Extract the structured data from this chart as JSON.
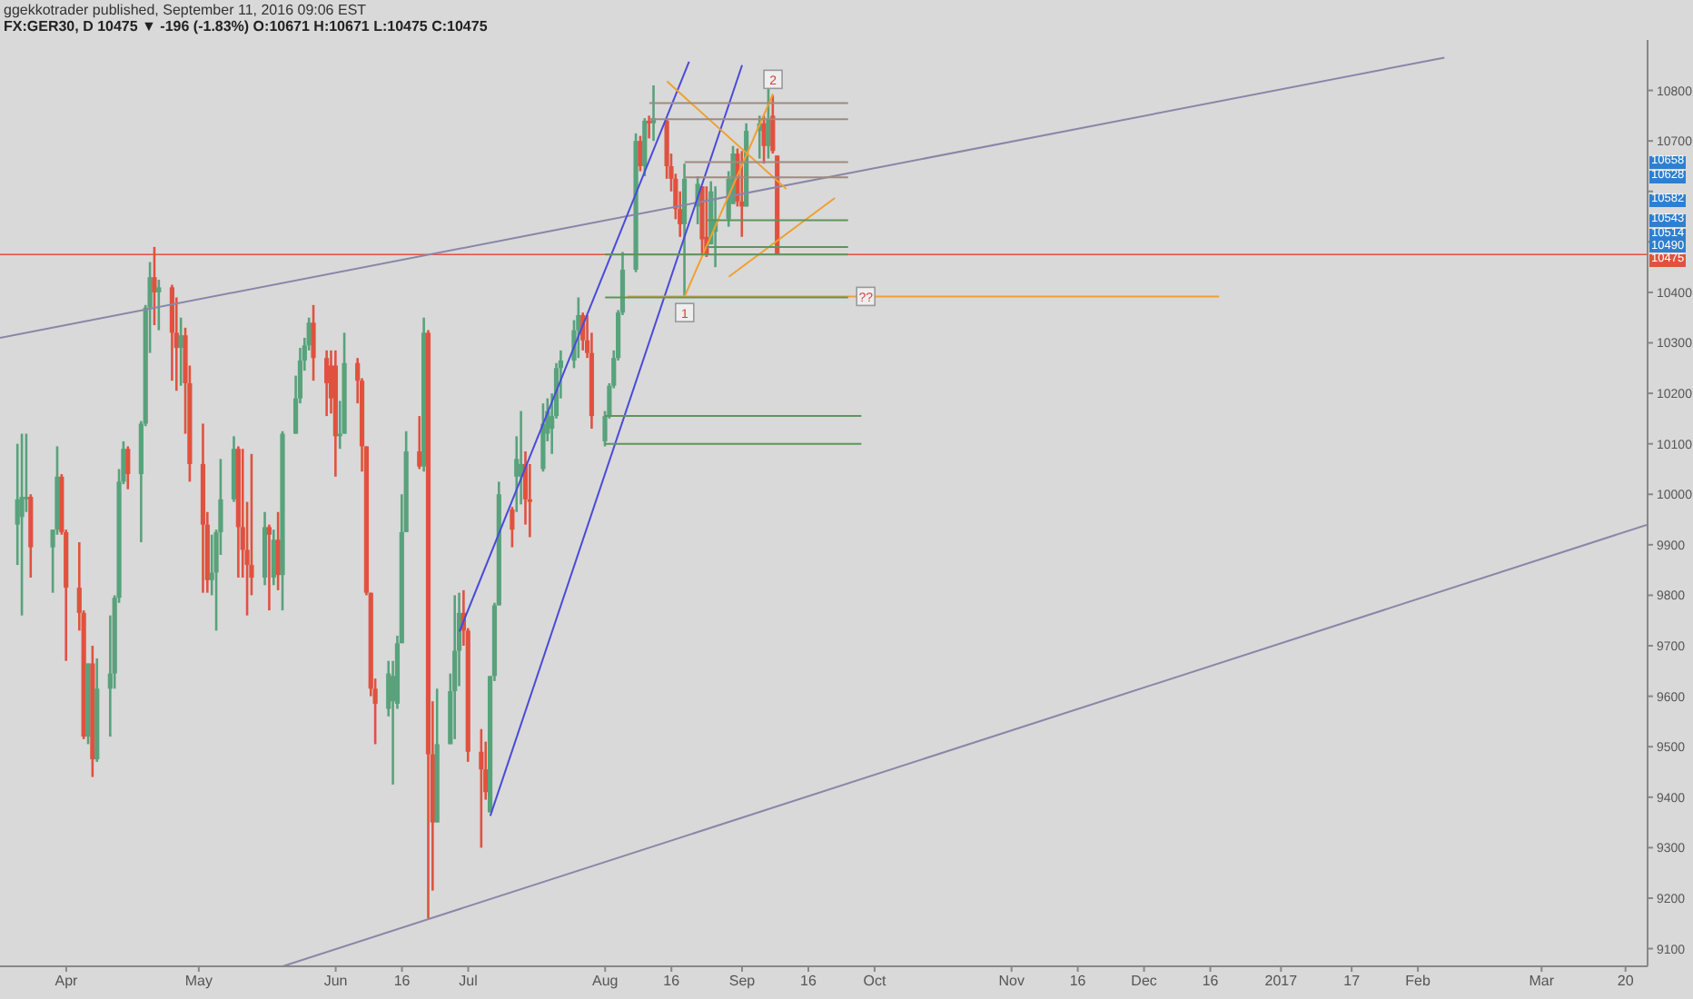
{
  "chart_data": {
    "type": "candlestick",
    "title": "ggekkotrader published, September 11, 2016 09:06 EST",
    "subtitle": "FX:GER30, D 10475 ▼ -196 (-1.83%) O:10671 H:10671 L:10475 C:10475",
    "colors": [
      "#58a27c",
      "#58a27c",
      "#58a27c",
      "#e0523f",
      "#58a27c",
      "#58a27c",
      "#e0523f",
      "#e0523f",
      "#e0523f",
      "#e0523f",
      "#58a27c",
      "#e0523f",
      "#58a27c",
      "#58a27c",
      "#58a27c",
      "#58a27c",
      "#58a27c",
      "#e0523f",
      "#58a27c",
      "#58a27c",
      "#58a27c",
      "#e0523f",
      "#58a27c",
      "#e0523f",
      "#e0523f",
      "#58a27c",
      "#e0523f",
      "#e0523f",
      "#e0523f",
      "#e0523f",
      "#58a27c",
      "#58a27c",
      "#58a27c",
      "#58a27c",
      "#e0523f",
      "#e0523f",
      "#e0523f",
      "#e0523f",
      "#58a27c",
      "#e0523f",
      "#58a27c",
      "#e0523f",
      "#58a27c",
      "#58a27c",
      "#58a27c",
      "#58a27c",
      "#58a27c",
      "#e0523f",
      "#e0523f",
      "#e0523f",
      "#e0523f",
      "#58a27c",
      "#58a27c",
      "#e0523f",
      "#e0523f",
      "#e0523f",
      "#e0523f",
      "#e0523f",
      "#58a27c",
      "#58a27c",
      "#58a27c",
      "#58a27c",
      "#58a27c",
      "#e0523f",
      "#58a27c",
      "#e0523f",
      "#e0523f",
      "#58a27c",
      "#58a27c",
      "#58a27c",
      "#58a27c",
      "#e0523f",
      "#e0523f",
      "#e0523f",
      "#e0523f",
      "#58a27c",
      "#58a27c",
      "#58a27c",
      "#e0523f",
      "#58a27c",
      "#58a27c",
      "#e0523f",
      "#e0523f",
      "#58a27c",
      "#58a27c",
      "#58a27c",
      "#58a27c",
      "#58a27c",
      "#58a27c",
      "#58a27c",
      "#e0523f",
      "#e0523f",
      "#e0523f",
      "#58a27c",
      "#58a27c",
      "#58a27c",
      "#58a27c",
      "#58a27c",
      "#58a27c",
      "#e0523f",
      "#58a27c",
      "#e0523f",
      "#58a27c",
      "#e0523f",
      "#e0523f",
      "#e0523f",
      "#e0523f",
      "#58a27c",
      "#58a27c",
      "#e0523f",
      "#e0523f",
      "#58a27c",
      "#58a27c",
      "#58a27c",
      "#58a27c",
      "#e0523f",
      "#e0523f",
      "#58a27c",
      "#58a27c",
      "#e0523f",
      "#58a27c",
      "#e0523f",
      "#e0523f"
    ],
    "x": [
      "2016-03-21",
      "2016-03-22",
      "2016-03-23",
      "2016-03-24",
      "2016-03-29",
      "2016-03-30",
      "2016-03-31",
      "2016-04-01",
      "2016-04-04",
      "2016-04-05",
      "2016-04-06",
      "2016-04-07",
      "2016-04-08",
      "2016-04-11",
      "2016-04-12",
      "2016-04-13",
      "2016-04-14",
      "2016-04-15",
      "2016-04-18",
      "2016-04-19",
      "2016-04-20",
      "2016-04-21",
      "2016-04-22",
      "2016-04-25",
      "2016-04-26",
      "2016-04-27",
      "2016-04-28",
      "2016-04-29",
      "2016-05-02",
      "2016-05-03",
      "2016-05-04",
      "2016-05-05",
      "2016-05-06",
      "2016-05-09",
      "2016-05-10",
      "2016-05-11",
      "2016-05-12",
      "2016-05-13",
      "2016-05-16",
      "2016-05-17",
      "2016-05-18",
      "2016-05-19",
      "2016-05-20",
      "2016-05-23",
      "2016-05-24",
      "2016-05-25",
      "2016-05-26",
      "2016-05-27",
      "2016-05-30",
      "2016-05-31",
      "2016-06-01",
      "2016-06-02",
      "2016-06-03",
      "2016-06-06",
      "2016-06-07",
      "2016-06-08",
      "2016-06-09",
      "2016-06-10",
      "2016-06-13",
      "2016-06-14",
      "2016-06-15",
      "2016-06-16",
      "2016-06-17",
      "2016-06-20",
      "2016-06-21",
      "2016-06-22",
      "2016-06-23",
      "2016-06-24",
      "2016-06-27",
      "2016-06-28",
      "2016-06-29",
      "2016-06-30",
      "2016-07-01",
      "2016-07-04",
      "2016-07-05",
      "2016-07-06",
      "2016-07-07",
      "2016-07-08",
      "2016-07-11",
      "2016-07-12",
      "2016-07-13",
      "2016-07-14",
      "2016-07-15",
      "2016-07-18",
      "2016-07-19",
      "2016-07-20",
      "2016-07-21",
      "2016-07-22",
      "2016-07-25",
      "2016-07-26",
      "2016-07-27",
      "2016-07-28",
      "2016-07-29",
      "2016-08-01",
      "2016-08-02",
      "2016-08-03",
      "2016-08-04",
      "2016-08-05",
      "2016-08-08",
      "2016-08-09",
      "2016-08-10",
      "2016-08-11",
      "2016-08-12",
      "2016-08-15",
      "2016-08-16",
      "2016-08-17",
      "2016-08-18",
      "2016-08-19",
      "2016-08-22",
      "2016-08-23",
      "2016-08-24",
      "2016-08-25",
      "2016-08-26",
      "2016-08-29",
      "2016-08-30",
      "2016-08-31",
      "2016-09-01",
      "2016-09-02",
      "2016-09-05",
      "2016-09-06",
      "2016-09-07",
      "2016-09-08",
      "2016-09-09"
    ],
    "ohlc": [
      [
        9940,
        10100,
        9860,
        9990
      ],
      [
        9955,
        10120,
        9760,
        9995
      ],
      [
        9990,
        10120,
        9965,
        9995
      ],
      [
        9995,
        10000,
        9835,
        9895
      ],
      [
        9895,
        9930,
        9805,
        9930
      ],
      [
        9930,
        10095,
        9920,
        10035
      ],
      [
        10035,
        10040,
        9920,
        9925
      ],
      [
        9925,
        9930,
        9670,
        9815
      ],
      [
        9815,
        9905,
        9730,
        9765
      ],
      [
        9765,
        9770,
        9515,
        9520
      ],
      [
        9520,
        9665,
        9505,
        9665
      ],
      [
        9665,
        9700,
        9440,
        9475
      ],
      [
        9475,
        9675,
        9470,
        9615
      ],
      [
        9615,
        9760,
        9520,
        9645
      ],
      [
        9645,
        9800,
        9615,
        9795
      ],
      [
        9795,
        10050,
        9785,
        10025
      ],
      [
        10025,
        10105,
        10020,
        10090
      ],
      [
        10090,
        10095,
        10010,
        10040
      ],
      [
        10040,
        10145,
        9905,
        10140
      ],
      [
        10140,
        10375,
        10135,
        10370
      ],
      [
        10370,
        10460,
        10280,
        10430
      ],
      [
        10430,
        10490,
        10335,
        10400
      ],
      [
        10400,
        10425,
        10325,
        10410
      ],
      [
        10410,
        10415,
        10225,
        10320
      ],
      [
        10320,
        10390,
        10205,
        10290
      ],
      [
        10290,
        10350,
        10215,
        10315
      ],
      [
        10315,
        10330,
        10120,
        10220
      ],
      [
        10220,
        10255,
        10025,
        10060
      ],
      [
        10060,
        10140,
        9805,
        9940
      ],
      [
        9940,
        9965,
        9805,
        9830
      ],
      [
        9830,
        9920,
        9800,
        9845
      ],
      [
        9845,
        9930,
        9730,
        9925
      ],
      [
        9925,
        10070,
        9880,
        9990
      ],
      [
        9990,
        10115,
        9985,
        10090
      ],
      [
        10090,
        10095,
        9835,
        9935
      ],
      [
        9935,
        10090,
        9835,
        9890
      ],
      [
        9890,
        9985,
        9760,
        9860
      ],
      [
        9860,
        10080,
        9800,
        9835
      ],
      [
        9835,
        9965,
        9820,
        9935
      ],
      [
        9935,
        9940,
        9770,
        9920
      ],
      [
        9835,
        9930,
        9820,
        9910
      ],
      [
        9910,
        9965,
        9810,
        9840
      ],
      [
        9840,
        10125,
        9770,
        10120
      ],
      [
        10120,
        10235,
        10120,
        10190
      ],
      [
        10190,
        10290,
        10180,
        10265
      ],
      [
        10265,
        10310,
        10245,
        10295
      ],
      [
        10295,
        10350,
        10285,
        10340
      ],
      [
        10340,
        10375,
        10225,
        10270
      ],
      [
        10270,
        10285,
        10155,
        10220
      ],
      [
        10255,
        10285,
        10160,
        10190
      ],
      [
        10255,
        10285,
        10035,
        10115
      ],
      [
        10115,
        10185,
        10090,
        10120
      ],
      [
        10120,
        10320,
        10120,
        10260
      ],
      [
        10260,
        10270,
        10180,
        10225
      ],
      [
        10225,
        10230,
        10045,
        10095
      ],
      [
        10095,
        10095,
        9800,
        9805
      ],
      [
        9805,
        9805,
        9600,
        9615
      ],
      [
        9615,
        9635,
        9505,
        9585
      ],
      [
        9575,
        9670,
        9560,
        9645
      ],
      [
        9590,
        9670,
        9425,
        9640
      ],
      [
        9585,
        9720,
        9575,
        9705
      ],
      [
        9705,
        10000,
        9705,
        9925
      ],
      [
        9925,
        10125,
        9925,
        10085
      ],
      [
        10085,
        10155,
        10050,
        10055
      ],
      [
        10055,
        10350,
        10045,
        10320
      ],
      [
        10320,
        10325,
        9160,
        9485
      ],
      [
        9485,
        9590,
        9215,
        9350
      ],
      [
        9350,
        9615,
        9350,
        9505
      ],
      [
        9505,
        9645,
        9505,
        9610
      ],
      [
        9610,
        9800,
        9515,
        9690
      ],
      [
        9690,
        9805,
        9620,
        9765
      ],
      [
        9765,
        9810,
        9700,
        9730
      ],
      [
        9730,
        9735,
        9470,
        9490
      ],
      [
        9490,
        9535,
        9300,
        9455
      ],
      [
        9455,
        9510,
        9395,
        9410
      ],
      [
        9370,
        9640,
        9370,
        9640
      ],
      [
        9640,
        9785,
        9630,
        9780
      ],
      [
        9780,
        10025,
        9780,
        10000
      ],
      [
        9970,
        9975,
        9895,
        9930
      ],
      [
        10035,
        10115,
        9965,
        10070
      ],
      [
        10035,
        10165,
        9980,
        10060
      ],
      [
        10060,
        10085,
        9940,
        9990
      ],
      [
        9990,
        10060,
        9915,
        9985
      ],
      [
        10050,
        10180,
        10045,
        10140
      ],
      [
        10120,
        10190,
        10105,
        10165
      ],
      [
        10130,
        10200,
        10080,
        10155
      ],
      [
        10155,
        10260,
        10150,
        10250
      ],
      [
        10250,
        10285,
        10190,
        10265
      ],
      [
        10265,
        10345,
        10250,
        10325
      ],
      [
        10325,
        10390,
        10270,
        10355
      ],
      [
        10355,
        10360,
        10285,
        10305
      ],
      [
        10305,
        10355,
        10270,
        10280
      ],
      [
        10280,
        10320,
        10130,
        10155
      ],
      [
        10105,
        10165,
        10095,
        10155
      ],
      [
        10155,
        10220,
        10150,
        10215
      ],
      [
        10215,
        10285,
        10210,
        10270
      ],
      [
        10270,
        10365,
        10265,
        10360
      ],
      [
        10360,
        10480,
        10355,
        10445
      ],
      [
        10445,
        10715,
        10440,
        10700
      ],
      [
        10700,
        10710,
        10640,
        10650
      ],
      [
        10650,
        10745,
        10630,
        10740
      ],
      [
        10740,
        10750,
        10705,
        10735
      ],
      [
        10735,
        10810,
        10700,
        10745
      ],
      [
        10740,
        10745,
        10625,
        10650
      ],
      [
        10650,
        10675,
        10600,
        10625
      ],
      [
        10625,
        10635,
        10545,
        10565
      ],
      [
        10565,
        10600,
        10510,
        10535
      ],
      [
        10535,
        10655,
        10390,
        10625
      ],
      [
        10570,
        10630,
        10535,
        10615
      ],
      [
        10610,
        10610,
        10475,
        10505
      ],
      [
        10510,
        10610,
        10470,
        10475
      ],
      [
        10495,
        10620,
        10495,
        10600
      ],
      [
        10520,
        10610,
        10450,
        10545
      ],
      [
        10545,
        10640,
        10530,
        10625
      ],
      [
        10575,
        10690,
        10575,
        10675
      ],
      [
        10675,
        10685,
        10570,
        10580
      ],
      [
        10580,
        10680,
        10510,
        10570
      ],
      [
        10570,
        10735,
        10570,
        10720
      ],
      [
        10720,
        10750,
        10665,
        10735
      ],
      [
        10735,
        10750,
        10655,
        10690
      ],
      [
        10690,
        10810,
        10665,
        10745
      ],
      [
        10750,
        10790,
        10675,
        10680
      ],
      [
        10671,
        10671,
        10475,
        10475
      ]
    ],
    "series": [
      {
        "type": "line",
        "color": "#8a86a8",
        "x": [
          "2016-03-17",
          "2017-02-07"
        ],
        "values": [
          10310,
          10865
        ]
      },
      {
        "type": "line",
        "color": "#8a86a8",
        "x": [
          "2016-05-20",
          "2017-03-25"
        ],
        "values": [
          9065,
          9940
        ]
      },
      {
        "type": "line",
        "color": "#4a4adb",
        "x": [
          "2016-06-29",
          "2016-08-20"
        ],
        "values": [
          9728,
          10857
        ]
      },
      {
        "type": "line",
        "color": "#4a4adb",
        "x": [
          "2016-07-06",
          "2016-09-01"
        ],
        "values": [
          9363,
          10850
        ]
      },
      {
        "type": "line",
        "color": "#f0a030",
        "x": [
          "2016-08-06",
          "2016-12-18"
        ],
        "values": [
          10392,
          10392
        ]
      },
      {
        "type": "line",
        "color": "#f0a030",
        "x": [
          "2016-08-15",
          "2016-09-11"
        ],
        "values": [
          10818,
          10605
        ]
      },
      {
        "type": "line",
        "color": "#f0a030",
        "x": [
          "2016-08-29",
          "2016-09-22"
        ],
        "values": [
          10431,
          10587
        ]
      },
      {
        "type": "line",
        "color": "#f0a030",
        "x": [
          "2016-08-19",
          "2016-09-08"
        ],
        "values": [
          10392,
          10793
        ]
      },
      {
        "type": "line",
        "color": "#a08a80",
        "x": [
          "2016-08-11",
          "2016-09-25"
        ],
        "values": [
          10775,
          10775
        ]
      },
      {
        "type": "line",
        "color": "#a08a80",
        "x": [
          "2016-08-11",
          "2016-09-25"
        ],
        "values": [
          10743,
          10743
        ]
      },
      {
        "type": "line",
        "color": "#a08a80",
        "x": [
          "2016-08-19",
          "2016-09-25"
        ],
        "values": [
          10658,
          10658
        ]
      },
      {
        "type": "line",
        "color": "#a08a80",
        "x": [
          "2016-08-19",
          "2016-09-25"
        ],
        "values": [
          10628,
          10628
        ]
      },
      {
        "type": "line",
        "color": "#5e955c",
        "x": [
          "2016-08-24",
          "2016-09-25"
        ],
        "values": [
          10543,
          10543
        ]
      },
      {
        "type": "line",
        "color": "#5e955c",
        "x": [
          "2016-08-24",
          "2016-09-25"
        ],
        "values": [
          10490,
          10490
        ]
      },
      {
        "type": "line",
        "color": "#5e955c",
        "x": [
          "2016-08-01",
          "2016-09-25"
        ],
        "values": [
          10475,
          10475
        ]
      },
      {
        "type": "line",
        "color": "#5e955c",
        "x": [
          "2016-08-01",
          "2016-09-25"
        ],
        "values": [
          10390,
          10390
        ]
      },
      {
        "type": "line",
        "color": "#5e955c",
        "x": [
          "2016-08-01",
          "2016-09-28"
        ],
        "values": [
          10155,
          10155
        ]
      },
      {
        "type": "line",
        "color": "#5e955c",
        "x": [
          "2016-08-01",
          "2016-09-28"
        ],
        "values": [
          10100,
          10100
        ]
      }
    ],
    "ref_lines": [
      {
        "axis": "y",
        "value": 10475,
        "label": "10475",
        "color": "#e0523f"
      }
    ],
    "annotations": [
      {
        "text": "1",
        "x": "2016-08-19",
        "y": 10360
      },
      {
        "text": "2",
        "x": "2016-09-08",
        "y": 10822
      },
      {
        "text": "??",
        "x": "2016-09-29",
        "y": 10392
      },
      {
        "text": "10658",
        "y": 10658
      },
      {
        "text": "10628",
        "y": 10628
      },
      {
        "text": "10582",
        "y": 10582
      },
      {
        "text": "10543",
        "y": 10543
      },
      {
        "text": "10514",
        "y": 10514
      },
      {
        "text": "10490",
        "y": 10490
      }
    ],
    "xlim": [
      "2016-03-17",
      "2017-03-25"
    ],
    "xticks": [
      {
        "value": "2016-04-01",
        "label": "Apr"
      },
      {
        "value": "2016-05-01",
        "label": "May"
      },
      {
        "value": "2016-06-01",
        "label": "Jun"
      },
      {
        "value": "2016-06-16",
        "label": "16"
      },
      {
        "value": "2016-07-01",
        "label": "Jul"
      },
      {
        "value": "2016-08-01",
        "label": "Aug"
      },
      {
        "value": "2016-08-16",
        "label": "16"
      },
      {
        "value": "2016-09-01",
        "label": "Sep"
      },
      {
        "value": "2016-09-16",
        "label": "16"
      },
      {
        "value": "2016-10-01",
        "label": "Oct"
      },
      {
        "value": "2016-11-01",
        "label": "Nov"
      },
      {
        "value": "2016-11-16",
        "label": "16"
      },
      {
        "value": "2016-12-01",
        "label": "Dec"
      },
      {
        "value": "2016-12-16",
        "label": "16"
      },
      {
        "value": "2017-01-01",
        "label": "2017"
      },
      {
        "value": "2017-01-17",
        "label": "17"
      },
      {
        "value": "2017-02-01",
        "label": "Feb"
      },
      {
        "value": "2017-03-01",
        "label": "Mar"
      },
      {
        "value": "2017-03-20",
        "label": "20"
      }
    ],
    "ylim": [
      9065,
      10900
    ],
    "yticks": [
      9100,
      9200,
      9300,
      9400,
      9500,
      9600,
      9700,
      9800,
      9900,
      10000,
      10100,
      10200,
      10300,
      10400,
      {
        "value": 10500,
        "label": null
      },
      {
        "value": 10600,
        "label": null
      },
      10700,
      10800
    ]
  }
}
